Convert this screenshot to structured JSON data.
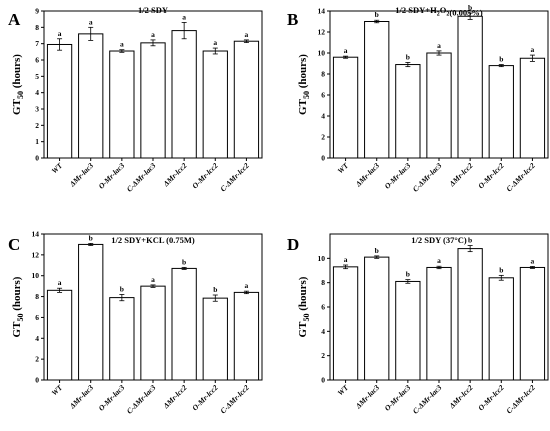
{
  "chart_data": [
    {
      "panel": "A",
      "type": "bar",
      "title": "1/2 SDY",
      "ylabel": "GT50 (hours)",
      "ylim": [
        0,
        9
      ],
      "yticks": [
        0,
        1,
        2,
        3,
        4,
        5,
        6,
        7,
        8,
        9
      ],
      "categories": [
        "WT",
        "ΔMr-lac3",
        "O-Mr-lac3",
        "C-ΔMr-lac3",
        "ΔMr-lcc2",
        "O-Mr-lcc2",
        "C-ΔMr-lcc2"
      ],
      "values": [
        6.95,
        7.6,
        6.55,
        7.05,
        7.8,
        6.55,
        7.15
      ],
      "errors": [
        0.35,
        0.4,
        0.08,
        0.18,
        0.5,
        0.18,
        0.08
      ],
      "significance": [
        "a",
        "a",
        "a",
        "a",
        "a",
        "a",
        "a"
      ]
    },
    {
      "panel": "B",
      "type": "bar",
      "title": "1/2 SDY+H2O2(0.005%)",
      "ylabel": "GT50 (hours)",
      "ylim": [
        0,
        14
      ],
      "yticks": [
        0,
        2,
        4,
        6,
        8,
        10,
        12,
        14
      ],
      "categories": [
        "WT",
        "ΔMr-lac3",
        "O-Mr-lac3",
        "C-ΔMr-lac3",
        "ΔMr-lcc2",
        "O-Mr-lcc2",
        "C-ΔMr-lcc2"
      ],
      "values": [
        9.6,
        13.0,
        8.9,
        10.0,
        13.5,
        8.8,
        9.5
      ],
      "errors": [
        0.1,
        0.12,
        0.2,
        0.2,
        0.3,
        0.1,
        0.3
      ],
      "significance": [
        "a",
        "b",
        "b",
        "a",
        "b",
        "b",
        "a"
      ]
    },
    {
      "panel": "C",
      "type": "bar",
      "title": "1/2 SDY+KCL (0.75M)",
      "ylabel": "GT50 (hours)",
      "ylim": [
        0,
        14
      ],
      "yticks": [
        0,
        2,
        4,
        6,
        8,
        10,
        12,
        14
      ],
      "categories": [
        "WT",
        "ΔMr-lac3",
        "O-Mr-lac3",
        "C-ΔMr-lac3",
        "ΔMr-lcc2",
        "O-Mr-lcc2",
        "C-ΔMr-lcc2"
      ],
      "values": [
        8.6,
        13.0,
        7.9,
        9.0,
        10.7,
        7.85,
        8.4
      ],
      "errors": [
        0.2,
        0.1,
        0.3,
        0.12,
        0.1,
        0.3,
        0.12
      ],
      "significance": [
        "a",
        "b",
        "b",
        "a",
        "b",
        "b",
        "a"
      ]
    },
    {
      "panel": "D",
      "type": "bar",
      "title": "1/2 SDY (37°C)",
      "ylabel": "GT50 (hours)",
      "ylim": [
        0,
        12
      ],
      "yticks": [
        0,
        2,
        4,
        6,
        8,
        10
      ],
      "categories": [
        "WT",
        "ΔMr-lac3",
        "O-Mr-lac3",
        "C-ΔMr-lac3",
        "ΔMr-lcc2",
        "O-Mr-lcc2",
        "C-ΔMr-lcc2"
      ],
      "values": [
        9.3,
        10.1,
        8.1,
        9.25,
        10.8,
        8.4,
        9.25
      ],
      "errors": [
        0.15,
        0.1,
        0.15,
        0.1,
        0.25,
        0.2,
        0.08
      ],
      "significance": [
        "a",
        "b",
        "b",
        "a",
        "b",
        "b",
        "a"
      ]
    }
  ],
  "colors": {
    "bar_fill": "#ffffff",
    "stroke": "#000000"
  }
}
